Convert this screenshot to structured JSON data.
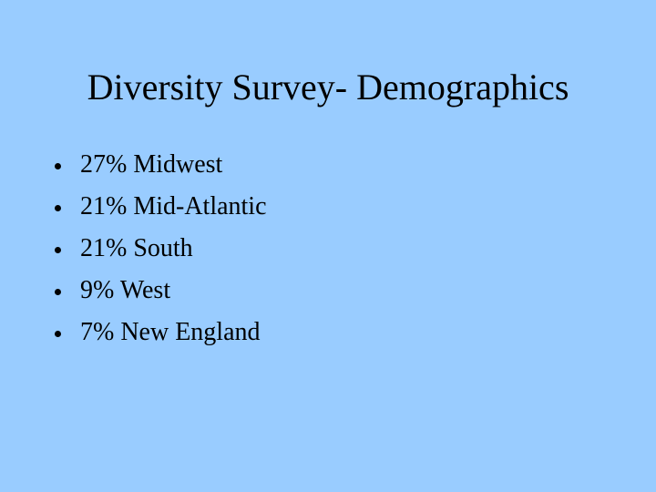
{
  "slide": {
    "title": "Diversity Survey- Demographics",
    "bullets": [
      "27% Midwest",
      "21% Mid-Atlantic",
      "21% South",
      "9% West",
      "7% New England"
    ]
  }
}
